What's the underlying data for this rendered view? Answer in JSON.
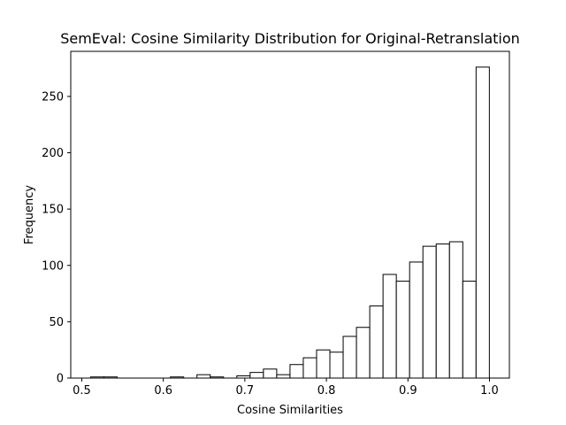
{
  "chart_data": {
    "type": "bar",
    "title": "SemEval: Cosine Similarity Distribution for Original-Retranslation",
    "xlabel": "Cosine Similarities",
    "ylabel": "Frequency",
    "xlim": [
      0.4865,
      1.0244
    ],
    "ylim": [
      0,
      290
    ],
    "xticks": [
      0.5,
      0.6,
      0.7,
      0.8,
      0.9,
      1.0
    ],
    "xtick_labels": [
      "0.5",
      "0.6",
      "0.7",
      "0.8",
      "0.9",
      "1.0"
    ],
    "yticks": [
      0,
      50,
      100,
      150,
      200,
      250
    ],
    "ytick_labels": [
      "0",
      "50",
      "100",
      "150",
      "200",
      "250"
    ],
    "grid": false,
    "bar_fill": "#ffffff",
    "bar_edge": "#000000",
    "bin_start": 0.5109,
    "bin_width": 0.016298,
    "values": [
      1,
      1,
      0,
      0,
      0,
      0,
      1,
      0,
      3,
      1,
      0,
      2,
      5,
      8,
      3,
      12,
      18,
      25,
      23,
      37,
      45,
      64,
      92,
      86,
      103,
      117,
      119,
      121,
      86,
      276
    ]
  }
}
